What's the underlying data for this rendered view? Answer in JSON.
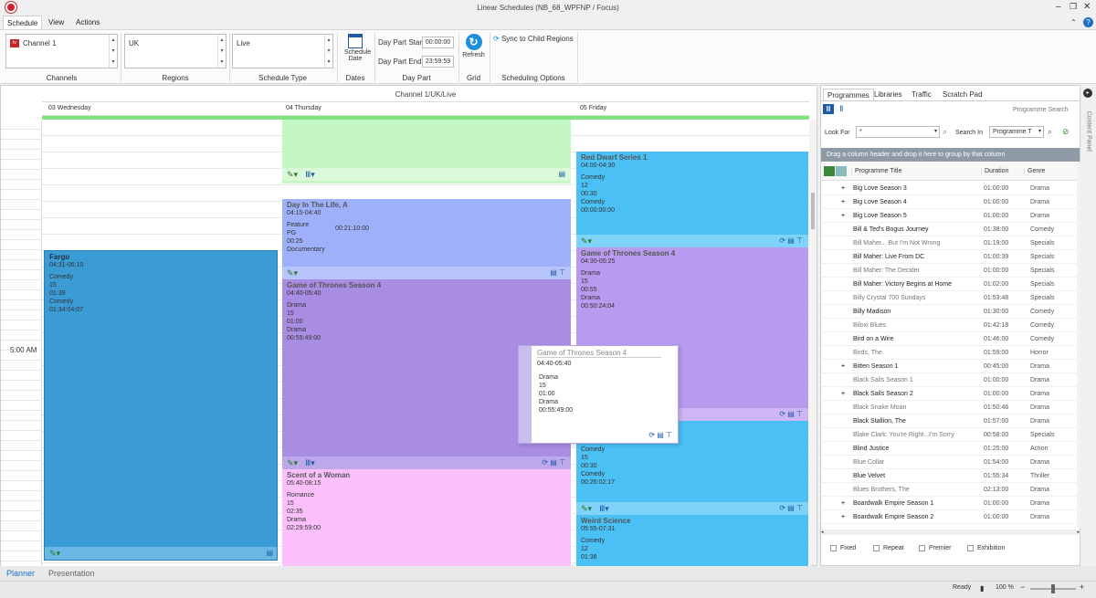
{
  "window": {
    "title": "Linear Schedules (NB_68_WPFNP / Focus)"
  },
  "menu": {
    "tabs": [
      "Schedule",
      "View",
      "Actions"
    ]
  },
  "ribbon": {
    "channel_value": "Channel 1",
    "region_value": "UK",
    "schedule_type_value": "Live",
    "schedule_date_label": "Schedule Date",
    "day_part_start_label": "Day Part Start",
    "day_part_start_value": "00:00:00",
    "day_part_end_label": "Day Part End",
    "day_part_end_value": "23:59:59",
    "refresh_label": "Refresh",
    "sync_label": "Sync to Child Regions",
    "groups": {
      "channels": "Channels",
      "regions": "Regions",
      "schedule_type": "Schedule Type",
      "dates": "Dates",
      "day_part": "Day Part",
      "grid": "Grid",
      "scheduling_options": "Scheduling Options"
    }
  },
  "schedule": {
    "header": "Channel 1/UK/Live",
    "days": [
      "03 Wednesday",
      "04 Thursday",
      "05 Friday"
    ],
    "time_label": "5:00 AM",
    "blocks": {
      "fargo": {
        "title": "Fargo",
        "time": "04:31-06:10",
        "lines": [
          "Comedy",
          "15",
          "01:39",
          "Comedy",
          "01:34:04:07"
        ]
      },
      "day_in_life": {
        "title": "Day In The Life, A",
        "time": "04:15-04:40",
        "lines": [
          "Feature",
          "PG",
          "00:25",
          "Documentary"
        ],
        "extra": "00:21:10:00"
      },
      "got_thu": {
        "title": "Game of Thrones Season 4",
        "time": "04:40-05:40",
        "lines": [
          "Drama",
          "15",
          "01:00",
          "Drama",
          "00:55:49:00"
        ]
      },
      "scent": {
        "title": "Scent of a Woman",
        "time": "05:40-08:15",
        "lines": [
          "Romance",
          "15",
          "02:35",
          "Drama",
          "02:29:59:00"
        ]
      },
      "red_dwarf": {
        "title": "Red Dwarf Series 1",
        "time": "04:00-04:30",
        "lines": [
          "Comedy",
          "12",
          "00:30",
          "Comedy",
          "00:00:00:00"
        ]
      },
      "got_fri": {
        "title": "Game of Thrones Season 4",
        "time": "04:30-05:25",
        "lines": [
          "Drama",
          "15",
          "00:55",
          "Drama",
          "00:50:24:04"
        ]
      },
      "fri_mid": {
        "lines": [
          "Comedy",
          "15",
          "00:30",
          "Comedy",
          "00:26:02:17"
        ]
      },
      "weird": {
        "title": "Weird Science",
        "time": "05:55-07:31",
        "lines": [
          "Comedy",
          "12",
          "01:36"
        ]
      }
    },
    "tooltip": {
      "title": "Game of Thrones Season 4",
      "time": "04:40-05:40",
      "lines": [
        "Drama",
        "15",
        "01:00",
        "Drama",
        "00:55:49:00"
      ]
    }
  },
  "panel": {
    "tabs": [
      "Programmes",
      "Libraries",
      "Traffic",
      "Scratch Pad"
    ],
    "search_link": "Programme Search",
    "look_for_label": "Look For",
    "look_for_value": "*",
    "search_in_label": "Search In",
    "search_in_value": "Programme T",
    "group_hint": "Drag a column header and drop it here to group by that column",
    "columns": [
      "Programme Title",
      "Duration",
      "Genre"
    ],
    "rows": [
      {
        "exp": "+",
        "title": "Big Love Season 3",
        "dur": "01:00:00",
        "genre": "Drama"
      },
      {
        "exp": "+",
        "title": "Big Love Season 4",
        "dur": "01:00:00",
        "genre": "Drama"
      },
      {
        "exp": "+",
        "title": "Big Love Season 5",
        "dur": "01:00:00",
        "genre": "Drama"
      },
      {
        "exp": "",
        "title": "Bill & Ted's Bogus Journey",
        "dur": "01:38:00",
        "genre": "Comedy"
      },
      {
        "exp": "",
        "title": "Bill Maher... But I'm Not Wrong",
        "dur": "01:19:00",
        "genre": "Specials"
      },
      {
        "exp": "",
        "title": "Bill Maher: Live From DC",
        "dur": "01:00:39",
        "genre": "Specials"
      },
      {
        "exp": "",
        "title": "Bill Maher: The Decider",
        "dur": "01:00:00",
        "genre": "Specials"
      },
      {
        "exp": "",
        "title": "Bill Maher: Victory Begins at Home",
        "dur": "01:02:00",
        "genre": "Specials"
      },
      {
        "exp": "",
        "title": "Billy Crystal 700 Sundays",
        "dur": "01:53:48",
        "genre": "Specials"
      },
      {
        "exp": "",
        "title": "Billy Madison",
        "dur": "01:30:00",
        "genre": "Comedy"
      },
      {
        "exp": "",
        "title": "Biloxi Blues",
        "dur": "01:42:18",
        "genre": "Comedy"
      },
      {
        "exp": "",
        "title": "Bird on a Wire",
        "dur": "01:46:00",
        "genre": "Comedy"
      },
      {
        "exp": "",
        "title": "Birds, The",
        "dur": "01:59:00",
        "genre": "Horror"
      },
      {
        "exp": "+",
        "title": "Bitten Season 1",
        "dur": "00:45:00",
        "genre": "Drama"
      },
      {
        "exp": "",
        "title": "Black Sails Season 1",
        "dur": "01:00:00",
        "genre": "Drama"
      },
      {
        "exp": "+",
        "title": "Black Sails Season 2",
        "dur": "01:00:00",
        "genre": "Drama"
      },
      {
        "exp": "",
        "title": "Black Snake Moan",
        "dur": "01:50:46",
        "genre": "Drama"
      },
      {
        "exp": "",
        "title": "Black Stallion, The",
        "dur": "01:57:00",
        "genre": "Drama"
      },
      {
        "exp": "",
        "title": "Blake Clark: You're Right...I'm Sorry",
        "dur": "00:58:00",
        "genre": "Specials"
      },
      {
        "exp": "",
        "title": "Blind Justice",
        "dur": "01:25:00",
        "genre": "Action"
      },
      {
        "exp": "",
        "title": "Blue Collar",
        "dur": "01:54:00",
        "genre": "Drama"
      },
      {
        "exp": "",
        "title": "Blue Velvet",
        "dur": "01:55:34",
        "genre": "Thriller"
      },
      {
        "exp": "",
        "title": "Blues Brothers, The",
        "dur": "02:13:00",
        "genre": "Drama"
      },
      {
        "exp": "+",
        "title": "Boardwalk Empire Season 1",
        "dur": "01:00:00",
        "genre": "Drama"
      },
      {
        "exp": "+",
        "title": "Boardwalk Empire Season 2",
        "dur": "01:00:00",
        "genre": "Drama"
      }
    ],
    "checkboxes": [
      "Fixed",
      "Repeat",
      "Premier",
      "Exhibition"
    ],
    "side_label": "Content Panel"
  },
  "bottom_tabs": [
    "Planner",
    "Presentation"
  ],
  "status": {
    "ready": "Ready",
    "zoom": "100 %"
  }
}
